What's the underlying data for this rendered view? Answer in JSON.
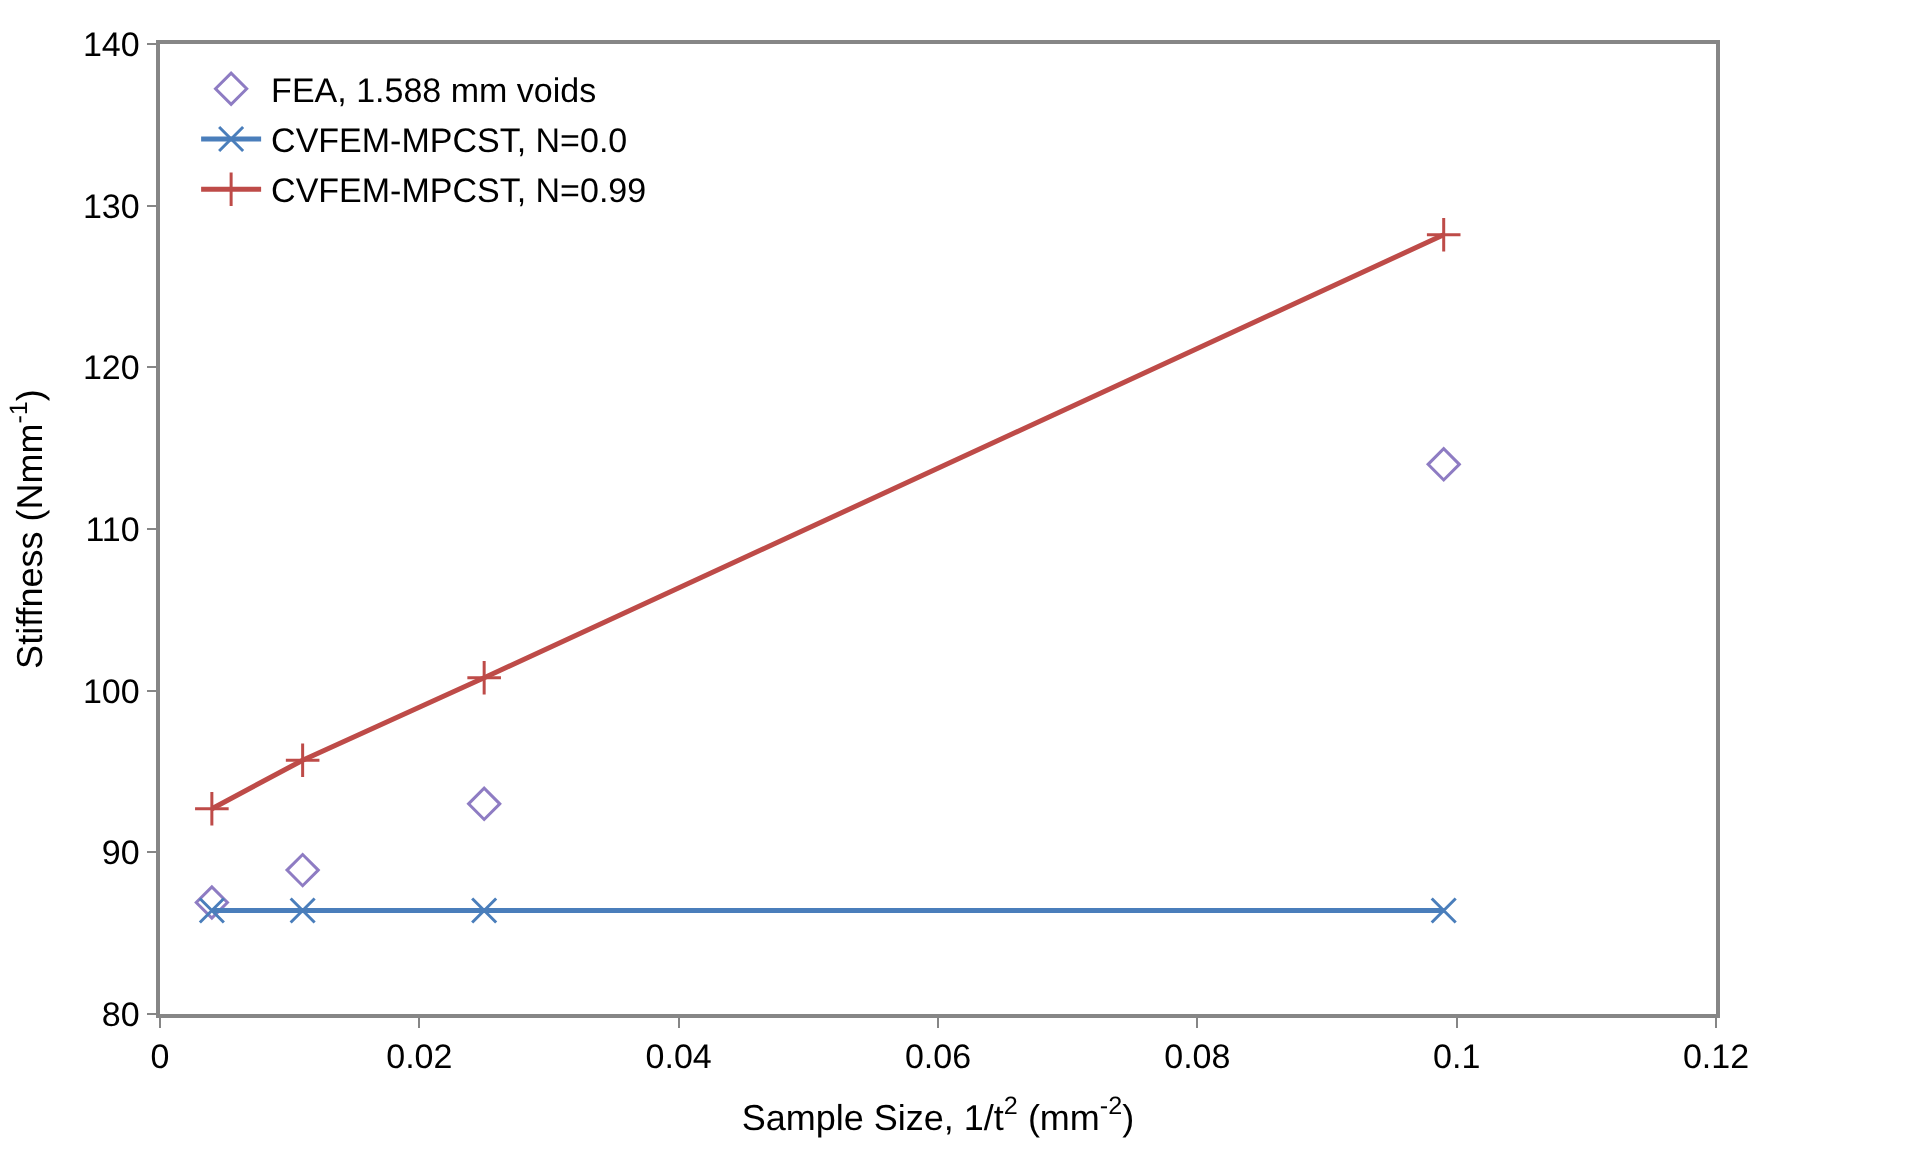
{
  "chart_data": {
    "type": "scatter",
    "xlabel": "Sample Size, 1/t$^{2}$ (mm$^{-2}$)",
    "ylabel": "Stiffness (Nmm$^{-1}$)",
    "x": [
      0.004,
      0.011,
      0.025,
      0.099
    ],
    "series": [
      {
        "name": "FEA, 1.588 mm voids",
        "color": "#8e7cc3",
        "marker": "diamond",
        "values": [
          86.9,
          88.9,
          93.0,
          114.0
        ]
      },
      {
        "name": "CVFEM-MPCST, N=0.0",
        "color": "#4a7ebb",
        "type": "line",
        "marker": "cross",
        "values": [
          86.4,
          86.4,
          86.4,
          86.4
        ]
      },
      {
        "name": "CVFEM-MPCST, N=0.99",
        "color": "#be4b48",
        "type": "line",
        "marker": "cross",
        "values": [
          92.7,
          95.7,
          100.8,
          128.2
        ]
      }
    ],
    "xlim": [
      0,
      0.12
    ],
    "xticks": [
      0,
      0.02,
      0.04,
      0.06,
      0.08,
      0.1,
      0.12
    ],
    "ylim": [
      80,
      140
    ],
    "yticks": [
      80,
      90,
      100,
      110,
      120,
      130,
      140
    ],
    "grid": false,
    "legend": "top left"
  }
}
